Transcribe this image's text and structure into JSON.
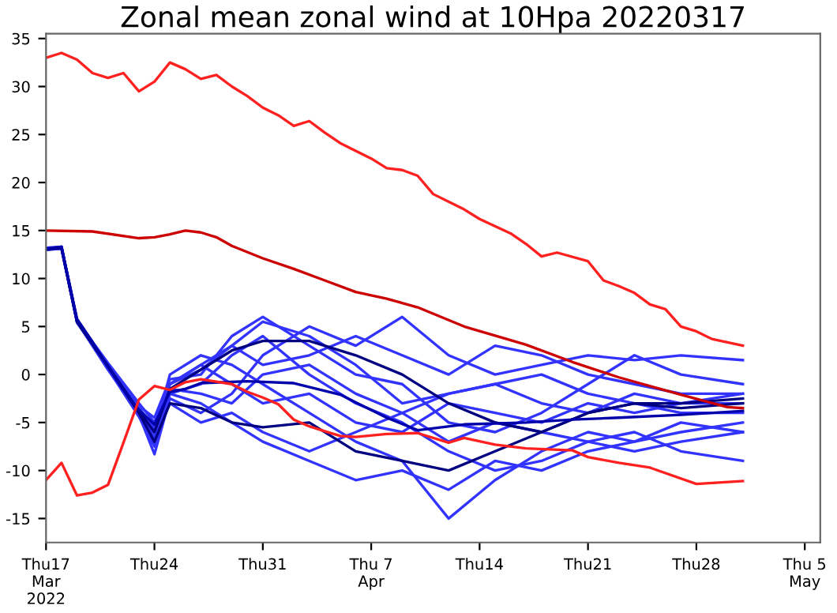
{
  "chart_data": {
    "type": "line",
    "title": "Zonal mean zonal wind at 10Hpa 20220317",
    "ylim": [
      -17.5,
      35.5
    ],
    "yticks": [
      -15,
      -10,
      -5,
      0,
      5,
      10,
      15,
      20,
      25,
      30,
      35
    ],
    "xlim": [
      "2022-03-17",
      "2022-05-06"
    ],
    "xticks": [
      {
        "value": "2022-03-17",
        "label": "Thu17\nMar\n2022"
      },
      {
        "value": "2022-03-24",
        "label": "Thu24"
      },
      {
        "value": "2022-03-31",
        "label": "Thu31"
      },
      {
        "value": "2022-04-07",
        "label": "Thu 7\nApr"
      },
      {
        "value": "2022-04-14",
        "label": "Thu14"
      },
      {
        "value": "2022-04-21",
        "label": "Thu21"
      },
      {
        "value": "2022-04-28",
        "label": "Thu28"
      },
      {
        "value": "2022-05-05",
        "label": "Thu 5\nMay"
      }
    ],
    "x": [
      "2022-03-17",
      "2022-03-18",
      "2022-03-19",
      "2022-03-21",
      "2022-03-23",
      "2022-03-24",
      "2022-03-25",
      "2022-03-27",
      "2022-03-29",
      "2022-03-31",
      "2022-04-03",
      "2022-04-06",
      "2022-04-09",
      "2022-04-12",
      "2022-04-15",
      "2022-04-18",
      "2022-04-21",
      "2022-04-24",
      "2022-04-27",
      "2022-05-01"
    ],
    "grid": false,
    "legend": false,
    "marker": "none",
    "line_style": "solid",
    "series": [
      {
        "color": "#3333ff",
        "values": [
          13,
          13.2,
          5.6,
          0.8,
          -3.5,
          -5.5,
          -1,
          0.5,
          3,
          5.5,
          4,
          1,
          -3,
          -2,
          -1,
          -3,
          -4,
          -2,
          -3,
          -2
        ]
      },
      {
        "color": "#3333ff",
        "values": [
          13,
          13.3,
          5.5,
          0.5,
          -4,
          -7,
          -2,
          -3,
          -5,
          -7,
          -9,
          -11,
          -10,
          -12,
          -9,
          -10,
          -8,
          -7,
          -6,
          -5
        ]
      },
      {
        "color": "#3333ff",
        "values": [
          13.1,
          13.2,
          5.7,
          1,
          -3.8,
          -6,
          0,
          2,
          1,
          -1,
          -4,
          -7,
          -9,
          -15,
          -11,
          -8,
          -6,
          -7,
          -5,
          -6
        ]
      },
      {
        "color": "#3333ff",
        "values": [
          13,
          13.1,
          5.5,
          0.7,
          -4.2,
          -8.3,
          -2.5,
          -4,
          -2,
          2,
          5,
          3,
          6,
          2,
          0,
          1,
          2,
          1.5,
          2,
          1.5
        ]
      },
      {
        "color": "#3333ff",
        "values": [
          13.2,
          13.3,
          5.6,
          1.2,
          -3,
          -5,
          -1,
          1,
          -1,
          -3,
          -2,
          -5,
          -6,
          -3,
          -4,
          -5,
          -3,
          -4,
          -3,
          -3
        ]
      },
      {
        "color": "#3333ff",
        "values": [
          13,
          13.2,
          5.4,
          0.9,
          -3.6,
          -6.5,
          -3,
          -5,
          -4,
          -6,
          -8,
          -6,
          -4,
          -7,
          -5,
          -6,
          -7,
          -6,
          -8,
          -9
        ]
      },
      {
        "color": "#3333ff",
        "values": [
          13.1,
          13.3,
          5.6,
          1,
          -3.3,
          -4.5,
          -0.5,
          0,
          4,
          6,
          3,
          0,
          -1,
          -5,
          -6,
          -4,
          -1,
          2,
          0,
          -1
        ]
      },
      {
        "color": "#3333ff",
        "values": [
          13,
          13.2,
          5.5,
          0.6,
          -4.4,
          -7.5,
          -1.5,
          -2,
          -3,
          0,
          1,
          -2,
          -4,
          -2,
          -1,
          0,
          -2,
          -3,
          -4,
          -4
        ]
      },
      {
        "color": "#3333ff",
        "values": [
          13,
          13.1,
          5.5,
          0.7,
          -4,
          -6.8,
          -2,
          -1,
          2,
          4,
          0,
          -3,
          -5,
          -8,
          -10,
          -9,
          -7,
          -8,
          -7,
          -6
        ]
      },
      {
        "color": "#3333ff",
        "values": [
          13.1,
          13.2,
          5.6,
          0.9,
          -3.7,
          -5.8,
          -1,
          1,
          3,
          1,
          2,
          4,
          2,
          0,
          3,
          2,
          0,
          -1,
          -2,
          -2
        ]
      },
      {
        "color": "#000080",
        "values": [
          13.1,
          13.2,
          5.6,
          0.9,
          -3.8,
          -6,
          -1.5,
          0.5,
          2.5,
          3.5,
          3.5,
          2,
          0,
          -3,
          -5,
          -6,
          -4,
          -3,
          -3,
          -2.5
        ]
      },
      {
        "color": "#000080",
        "values": [
          13,
          13.2,
          5.5,
          0.8,
          -4,
          -7,
          -3,
          -3.5,
          -5,
          -5.5,
          -5,
          -8,
          -9,
          -10,
          -8,
          -6,
          -4,
          -3,
          -3.5,
          -3
        ]
      },
      {
        "color": "#0000aa",
        "x": [
          "2022-03-17",
          "2022-03-18",
          "2022-03-19",
          "2022-03-20",
          "2022-03-21",
          "2022-03-22",
          "2022-03-23",
          "2022-03-24",
          "2022-03-25",
          "2022-03-26",
          "2022-03-27",
          "2022-03-30",
          "2022-04-02",
          "2022-04-05",
          "2022-04-08",
          "2022-04-10",
          "2022-04-13",
          "2022-04-17",
          "2022-04-20",
          "2022-04-23",
          "2022-04-27",
          "2022-05-01"
        ],
        "values": [
          13.1,
          13.3,
          5.8,
          3.4,
          0.8,
          -1.6,
          -3.7,
          -5.2,
          -1.8,
          -1.5,
          -0.9,
          -0.7,
          -0.9,
          -2.1,
          -4.5,
          -5.8,
          -5.2,
          -5.0,
          -4.7,
          -4.5,
          -4.2,
          -3.8
        ]
      },
      {
        "color": "#ff2020",
        "x": [
          "2022-03-17",
          "2022-03-18",
          "2022-03-19",
          "2022-03-20",
          "2022-03-21",
          "2022-03-22",
          "2022-03-23",
          "2022-03-24",
          "2022-03-25",
          "2022-03-26",
          "2022-03-27",
          "2022-03-29",
          "2022-03-30",
          "2022-03-31",
          "2022-04-01",
          "2022-04-02",
          "2022-04-03",
          "2022-04-04",
          "2022-04-05",
          "2022-04-06",
          "2022-04-08",
          "2022-04-10",
          "2022-04-12",
          "2022-04-13",
          "2022-04-15",
          "2022-04-17",
          "2022-04-20",
          "2022-04-21",
          "2022-04-23",
          "2022-04-25",
          "2022-04-28",
          "2022-05-01"
        ],
        "values": [
          -11.0,
          -9.2,
          -12.6,
          -12.3,
          -11.5,
          -7.1,
          -2.6,
          -1.2,
          -1.6,
          -0.8,
          -0.5,
          -1.0,
          -1.8,
          -2.4,
          -3.1,
          -4.7,
          -5.4,
          -5.9,
          -6.4,
          -6.5,
          -6.2,
          -6.1,
          -7.1,
          -6.6,
          -7.3,
          -7.7,
          -7.9,
          -8.6,
          -9.2,
          -9.7,
          -11.4,
          -11.1
        ]
      },
      {
        "color": "#ff2020",
        "x": [
          "2022-03-17",
          "2022-03-18",
          "2022-03-19",
          "2022-03-20",
          "2022-03-21",
          "2022-03-22",
          "2022-03-23",
          "2022-03-24",
          "2022-03-25",
          "2022-03-26",
          "2022-03-27",
          "2022-03-28",
          "2022-03-29",
          "2022-03-30",
          "2022-03-31",
          "2022-04-01",
          "2022-04-02",
          "2022-04-03",
          "2022-04-04",
          "2022-04-05",
          "2022-04-06",
          "2022-04-07",
          "2022-04-08",
          "2022-04-09",
          "2022-04-10",
          "2022-04-11",
          "2022-04-13",
          "2022-04-14",
          "2022-04-16",
          "2022-04-17",
          "2022-04-18",
          "2022-04-19",
          "2022-04-21",
          "2022-04-22",
          "2022-04-23",
          "2022-04-24",
          "2022-04-25",
          "2022-04-26",
          "2022-04-27",
          "2022-04-28",
          "2022-04-29",
          "2022-05-01"
        ],
        "values": [
          33.0,
          33.5,
          32.8,
          31.4,
          30.9,
          31.4,
          29.5,
          30.5,
          32.5,
          31.8,
          30.8,
          31.2,
          30.0,
          29.0,
          27.8,
          27.0,
          25.9,
          26.4,
          25.2,
          24.1,
          23.3,
          22.5,
          21.5,
          21.3,
          20.7,
          18.8,
          17.2,
          16.2,
          14.7,
          13.6,
          12.3,
          12.7,
          11.8,
          9.8,
          9.2,
          8.5,
          7.3,
          6.8,
          5.0,
          4.5,
          3.7,
          3.0
        ]
      },
      {
        "color": "#cc0000",
        "x": [
          "2022-03-17",
          "2022-03-20",
          "2022-03-23",
          "2022-03-24",
          "2022-03-25",
          "2022-03-26",
          "2022-03-27",
          "2022-03-28",
          "2022-03-29",
          "2022-03-31",
          "2022-04-02",
          "2022-04-04",
          "2022-04-06",
          "2022-04-08",
          "2022-04-10",
          "2022-04-13",
          "2022-04-17",
          "2022-04-20",
          "2022-04-23",
          "2022-04-27",
          "2022-04-30",
          "2022-05-01"
        ],
        "values": [
          15.0,
          14.9,
          14.2,
          14.3,
          14.6,
          15.0,
          14.8,
          14.3,
          13.4,
          12.1,
          11.0,
          9.8,
          8.6,
          7.9,
          7.0,
          5.0,
          3.1,
          1.3,
          -0.3,
          -2.1,
          -3.4,
          -3.5
        ]
      }
    ]
  }
}
